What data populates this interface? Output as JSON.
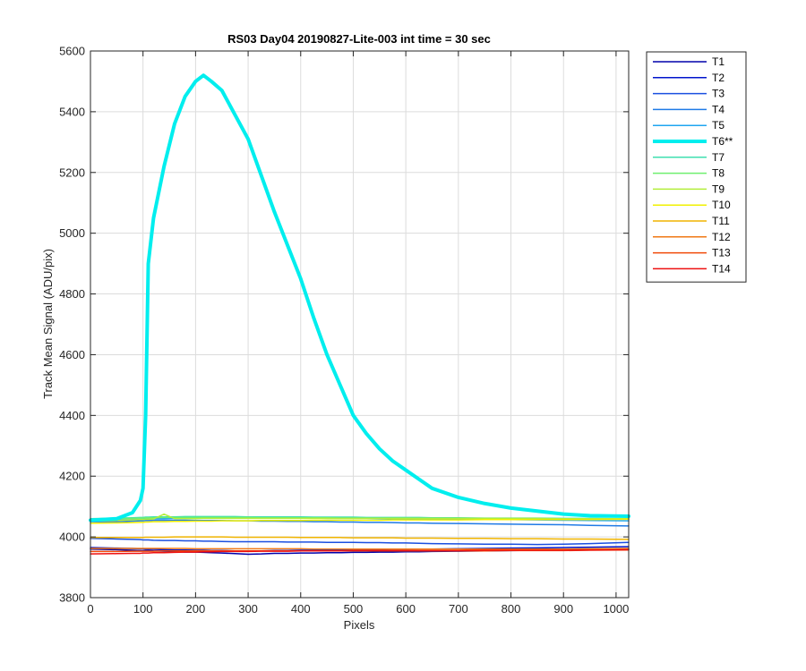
{
  "chart_data": {
    "type": "line",
    "title": "RS03 Day04 20190827-Lite-003 int time = 30 sec",
    "xlabel": "Pixels",
    "ylabel": "Track Mean Signal (ADU/pix)",
    "xlim": [
      0,
      1024
    ],
    "ylim": [
      3800,
      5600
    ],
    "xticks": [
      "0",
      "100",
      "200",
      "300",
      "400",
      "500",
      "600",
      "700",
      "800",
      "900",
      "1000"
    ],
    "yticks": [
      "3800",
      "4000",
      "4200",
      "4400",
      "4600",
      "4800",
      "5000",
      "5200",
      "5400",
      "5600"
    ],
    "grid": true,
    "legend_position": "outside-top-right",
    "x": [
      0,
      50,
      80,
      95,
      100,
      105,
      110,
      120,
      140,
      160,
      180,
      200,
      215,
      230,
      250,
      275,
      300,
      325,
      350,
      375,
      400,
      425,
      450,
      475,
      500,
      525,
      550,
      575,
      600,
      625,
      650,
      700,
      750,
      800,
      850,
      900,
      950,
      1024
    ],
    "series": [
      {
        "name": "T1",
        "color": "#0000aa",
        "width": 1.5,
        "values": [
          3960,
          3958,
          3956,
          3955,
          3954,
          3955,
          3955,
          3954,
          3953,
          3952,
          3950,
          3950,
          3949,
          3948,
          3947,
          3945,
          3943,
          3944,
          3946,
          3946,
          3947,
          3947,
          3948,
          3948,
          3949,
          3949,
          3950,
          3950,
          3951,
          3951,
          3952,
          3953,
          3954,
          3955,
          3956,
          3957,
          3958,
          3960
        ]
      },
      {
        "name": "T2",
        "color": "#0014cc",
        "width": 1.5,
        "values": [
          3965,
          3963,
          3962,
          3961,
          3960,
          3960,
          3959,
          3959,
          3958,
          3957,
          3957,
          3956,
          3956,
          3955,
          3955,
          3954,
          3954,
          3954,
          3955,
          3955,
          3956,
          3956,
          3957,
          3957,
          3958,
          3958,
          3958,
          3959,
          3959,
          3960,
          3960,
          3961,
          3962,
          3963,
          3964,
          3965,
          3966,
          3968
        ]
      },
      {
        "name": "T3",
        "color": "#1a4fe0",
        "width": 1.5,
        "values": [
          3995,
          3993,
          3992,
          3991,
          3990,
          3990,
          3990,
          3989,
          3988,
          3988,
          3987,
          3987,
          3986,
          3986,
          3985,
          3984,
          3984,
          3984,
          3984,
          3983,
          3983,
          3983,
          3982,
          3982,
          3982,
          3981,
          3981,
          3980,
          3980,
          3979,
          3978,
          3977,
          3976,
          3976,
          3975,
          3976,
          3978,
          3982
        ]
      },
      {
        "name": "T4",
        "color": "#1f7ae6",
        "width": 1.5,
        "values": [
          4050,
          4050,
          4052,
          4053,
          4053,
          4054,
          4054,
          4055,
          4055,
          4055,
          4055,
          4054,
          4054,
          4054,
          4054,
          4053,
          4053,
          4052,
          4052,
          4051,
          4051,
          4050,
          4050,
          4049,
          4049,
          4048,
          4048,
          4047,
          4046,
          4046,
          4045,
          4044,
          4043,
          4042,
          4041,
          4040,
          4038,
          4036
        ]
      },
      {
        "name": "T5",
        "color": "#1fa5f0",
        "width": 1.5,
        "values": [
          4055,
          4056,
          4057,
          4058,
          4058,
          4059,
          4059,
          4060,
          4060,
          4061,
          4061,
          4061,
          4062,
          4062,
          4062,
          4062,
          4062,
          4062,
          4062,
          4062,
          4062,
          4062,
          4061,
          4061,
          4061,
          4061,
          4060,
          4060,
          4060,
          4059,
          4059,
          4058,
          4057,
          4057,
          4056,
          4055,
          4054,
          4053
        ]
      },
      {
        "name": "T6**",
        "color": "#00eeee",
        "width": 4,
        "values": [
          4055,
          4060,
          4080,
          4120,
          4160,
          4400,
          4900,
          5050,
          5220,
          5360,
          5450,
          5500,
          5520,
          5500,
          5470,
          5390,
          5310,
          5190,
          5070,
          4960,
          4850,
          4720,
          4600,
          4500,
          4400,
          4340,
          4290,
          4250,
          4220,
          4190,
          4160,
          4130,
          4110,
          4095,
          4085,
          4075,
          4070,
          4068
        ]
      },
      {
        "name": "T7",
        "color": "#3fdfb0",
        "width": 1.5,
        "values": [
          4060,
          4062,
          4063,
          4064,
          4064,
          4065,
          4065,
          4066,
          4066,
          4066,
          4067,
          4067,
          4067,
          4067,
          4067,
          4067,
          4066,
          4066,
          4066,
          4066,
          4066,
          4065,
          4065,
          4065,
          4065,
          4064,
          4064,
          4064,
          4064,
          4064,
          4063,
          4063,
          4062,
          4062,
          4062,
          4061,
          4061,
          4060
        ]
      },
      {
        "name": "T8",
        "color": "#6fef6f",
        "width": 1.5,
        "values": [
          4058,
          4060,
          4061,
          4062,
          4062,
          4063,
          4063,
          4063,
          4064,
          4064,
          4064,
          4064,
          4064,
          4064,
          4064,
          4064,
          4064,
          4063,
          4063,
          4063,
          4063,
          4063,
          4063,
          4062,
          4062,
          4062,
          4062,
          4062,
          4062,
          4061,
          4061,
          4061,
          4061,
          4060,
          4060,
          4060,
          4059,
          4059
        ]
      },
      {
        "name": "T9",
        "color": "#b3ee3a",
        "width": 1.5,
        "values": [
          4052,
          4054,
          4056,
          4057,
          4057,
          4058,
          4058,
          4059,
          4075,
          4060,
          4060,
          4060,
          4061,
          4061,
          4061,
          4061,
          4061,
          4061,
          4061,
          4061,
          4061,
          4061,
          4061,
          4061,
          4061,
          4061,
          4061,
          4061,
          4061,
          4061,
          4061,
          4061,
          4061,
          4061,
          4061,
          4060,
          4060,
          4060
        ]
      },
      {
        "name": "T10",
        "color": "#f0f000",
        "width": 1.5,
        "values": [
          4045,
          4046,
          4047,
          4048,
          4048,
          4049,
          4049,
          4050,
          4050,
          4051,
          4051,
          4052,
          4052,
          4052,
          4053,
          4053,
          4053,
          4054,
          4054,
          4054,
          4054,
          4055,
          4055,
          4055,
          4055,
          4055,
          4055,
          4056,
          4056,
          4056,
          4056,
          4056,
          4057,
          4057,
          4057,
          4057,
          4057,
          4058
        ]
      },
      {
        "name": "T11",
        "color": "#f0b400",
        "width": 1.5,
        "values": [
          3998,
          3998,
          3998,
          3998,
          3998,
          3999,
          3999,
          3999,
          3999,
          4000,
          4000,
          4000,
          4000,
          4000,
          4000,
          3999,
          3999,
          3999,
          3999,
          3999,
          3998,
          3998,
          3998,
          3998,
          3997,
          3997,
          3997,
          3997,
          3996,
          3996,
          3996,
          3995,
          3995,
          3994,
          3994,
          3993,
          3993,
          3992
        ]
      },
      {
        "name": "T12",
        "color": "#f07814",
        "width": 1.5,
        "values": [
          3962,
          3962,
          3962,
          3962,
          3962,
          3962,
          3962,
          3962,
          3962,
          3962,
          3962,
          3961,
          3961,
          3961,
          3961,
          3961,
          3961,
          3961,
          3961,
          3961,
          3961,
          3960,
          3960,
          3960,
          3960,
          3960,
          3960,
          3960,
          3960,
          3960,
          3960,
          3960,
          3960,
          3960,
          3960,
          3960,
          3961,
          3962
        ]
      },
      {
        "name": "T13",
        "color": "#f04a0a",
        "width": 1.5,
        "values": [
          3952,
          3952,
          3953,
          3953,
          3953,
          3953,
          3953,
          3953,
          3954,
          3954,
          3954,
          3954,
          3954,
          3954,
          3954,
          3954,
          3954,
          3954,
          3954,
          3954,
          3954,
          3954,
          3954,
          3954,
          3954,
          3954,
          3954,
          3954,
          3954,
          3954,
          3954,
          3954,
          3954,
          3955,
          3955,
          3955,
          3956,
          3957
        ]
      },
      {
        "name": "T14",
        "color": "#ee1010",
        "width": 1.5,
        "values": [
          3944,
          3945,
          3946,
          3946,
          3947,
          3947,
          3947,
          3948,
          3948,
          3949,
          3950,
          3950,
          3951,
          3951,
          3952,
          3952,
          3952,
          3953,
          3953,
          3953,
          3954,
          3954,
          3954,
          3954,
          3955,
          3955,
          3955,
          3955,
          3955,
          3955,
          3955,
          3955,
          3956,
          3956,
          3956,
          3956,
          3957,
          3958
        ]
      }
    ]
  }
}
